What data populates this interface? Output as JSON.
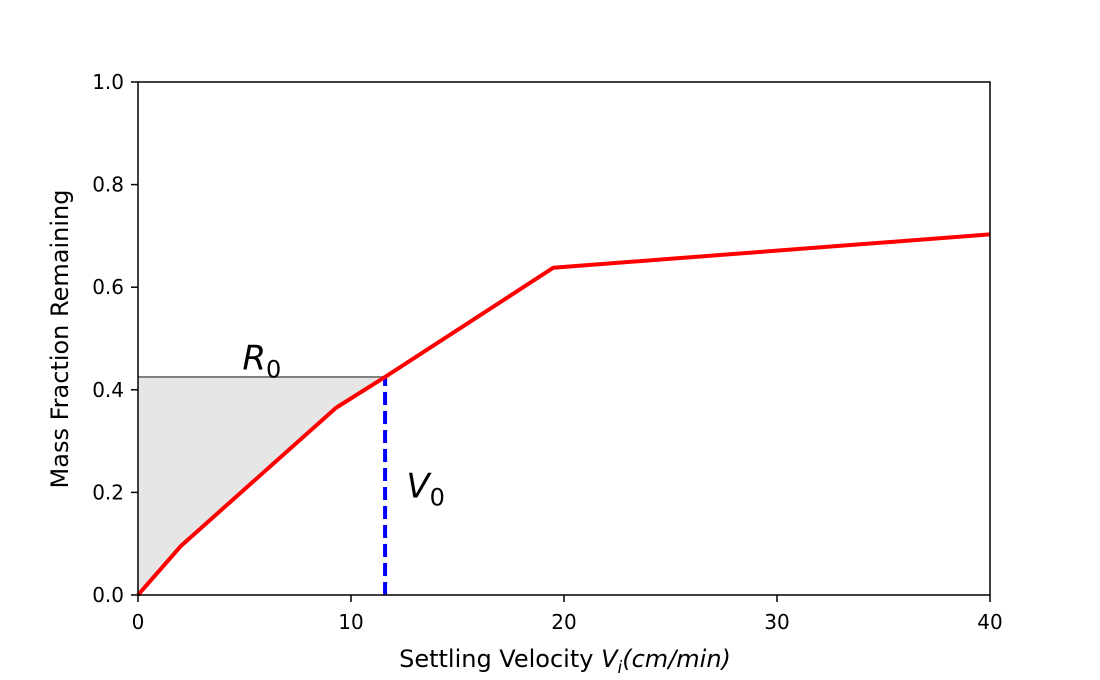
{
  "chart_data": {
    "type": "line",
    "xlabel": {
      "prefix": "Settling Velocity ",
      "var": "V",
      "sub": "i",
      "unit": "(cm/min)"
    },
    "ylabel": "Mass Fraction Remaining",
    "xlim": [
      0,
      40
    ],
    "ylim": [
      0,
      1.0
    ],
    "xticks": [
      0,
      10,
      20,
      30,
      40
    ],
    "yticks": [
      0.0,
      0.2,
      0.4,
      0.6,
      0.8,
      1.0
    ],
    "ytick_labels": [
      "0.0",
      "0.2",
      "0.4",
      "0.6",
      "0.8",
      "1.0"
    ],
    "xtick_labels": [
      "0",
      "10",
      "20",
      "30",
      "40"
    ],
    "grid": false,
    "series": [
      {
        "color": "#ff0000",
        "x": [
          0,
          2,
          9.3,
          11.6,
          19.5,
          40
        ],
        "y": [
          0,
          0.095,
          0.365,
          0.425,
          0.638,
          0.703
        ]
      }
    ],
    "shaded_region": {
      "color": "#e6e6e6",
      "x": [
        0,
        2,
        9.3,
        11.6
      ],
      "y": [
        0,
        0.095,
        0.365,
        0.425
      ]
    },
    "reference_lines": {
      "horizontal": {
        "y": 0.425,
        "x_from": 0,
        "x_to": 11.6,
        "color": "#808080"
      },
      "vertical": {
        "x": 11.6,
        "y_from": 0,
        "y_to": 0.425,
        "color": "#0000ff",
        "style": "dashed"
      }
    },
    "annotations": [
      {
        "var": "R",
        "sub": "0",
        "x": 4.9,
        "y": 0.44
      },
      {
        "var": "V",
        "sub": "0",
        "x": 12.6,
        "y": 0.19
      }
    ]
  }
}
